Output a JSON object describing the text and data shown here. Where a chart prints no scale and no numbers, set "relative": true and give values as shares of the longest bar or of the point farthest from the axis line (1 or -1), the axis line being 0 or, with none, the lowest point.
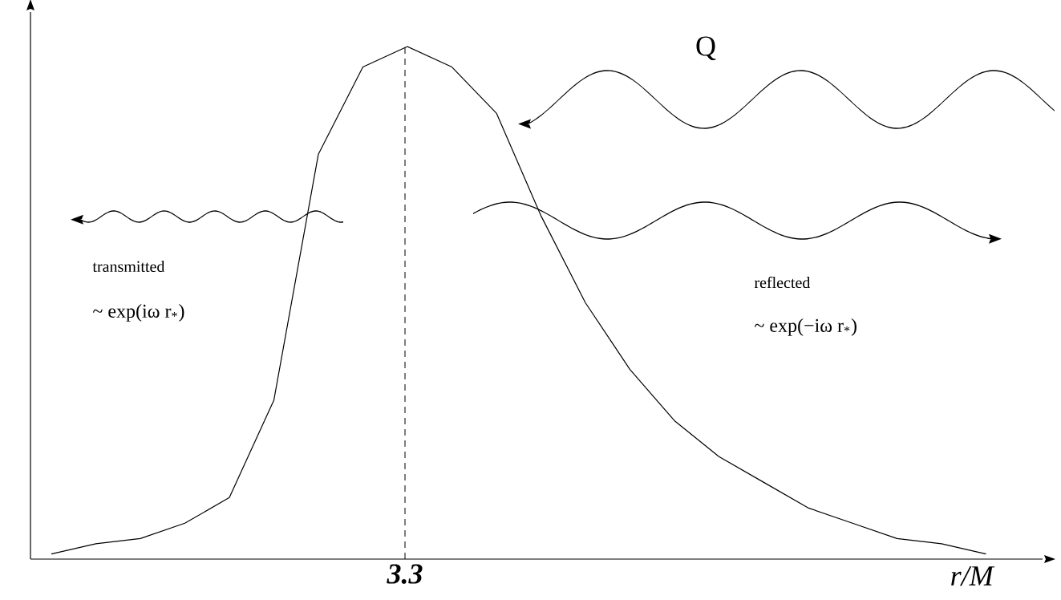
{
  "chart_data": {
    "type": "line",
    "relative": true,
    "categories": [
      null,
      null,
      null,
      null,
      null,
      null,
      null,
      null,
      null,
      null,
      null,
      null,
      null,
      null,
      null,
      null,
      null,
      null,
      null,
      null,
      null,
      null
    ],
    "values": [
      0.01,
      0.03,
      0.04,
      0.07,
      0.12,
      0.31,
      0.79,
      0.96,
      1,
      0.96,
      0.87,
      0.67,
      0.5,
      0.37,
      0.27,
      0.2,
      0.15,
      0.1,
      0.07,
      0.04,
      0.03,
      0.01
    ],
    "color": "#000000",
    "line_style": "solid",
    "xlabel": "r/M",
    "annotations": [
      "3.3",
      "Q",
      "transmitted",
      "~ exp(iω r$_{*}$)",
      "reflected",
      "~ exp(−iω r$_{*}$)"
    ]
  }
}
